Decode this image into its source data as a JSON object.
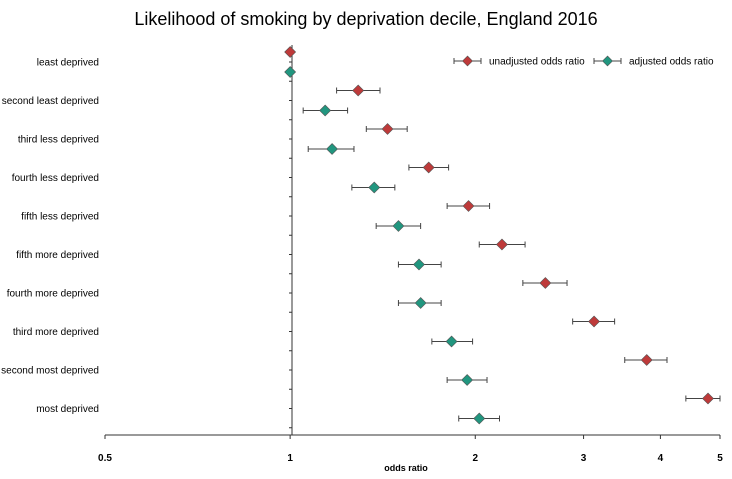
{
  "chart_data": {
    "type": "scatter",
    "title": "Likelihood of smoking by deprivation decile, England 2016",
    "xlabel": "odds ratio",
    "ylabel": "",
    "xscale": "log",
    "xlim": [
      0.5,
      5
    ],
    "xticks": [
      {
        "value": 0.5,
        "label": "0.5"
      },
      {
        "value": 1,
        "label": "1"
      },
      {
        "value": 2,
        "label": "2"
      },
      {
        "value": 3,
        "label": "3"
      },
      {
        "value": 4,
        "label": "4"
      },
      {
        "value": 5,
        "label": "5"
      }
    ],
    "categories": [
      "least deprived",
      "second least deprived",
      "third less deprived",
      "fourth less deprived",
      "fifth less deprived",
      "fifth more deprived",
      "fourth more deprived",
      "third more deprived",
      "second most deprived",
      "most deprived"
    ],
    "legend_position": "top-right",
    "grid": false,
    "series": [
      {
        "name": "unadjusted odds ratio",
        "color": "#be3a3a",
        "marker": "diamond",
        "values": [
          1.0,
          1.29,
          1.44,
          1.68,
          1.95,
          2.21,
          2.6,
          3.12,
          3.8,
          4.78
        ],
        "ci_low": [
          1.0,
          1.19,
          1.33,
          1.56,
          1.8,
          2.03,
          2.39,
          2.88,
          3.5,
          4.4
        ],
        "ci_high": [
          1.0,
          1.4,
          1.55,
          1.81,
          2.11,
          2.41,
          2.82,
          3.37,
          4.1,
          5.0
        ]
      },
      {
        "name": "adjusted odds ratio",
        "color": "#21967f",
        "marker": "diamond",
        "values": [
          1.0,
          1.14,
          1.17,
          1.37,
          1.5,
          1.62,
          1.63,
          1.83,
          1.94,
          2.03
        ],
        "ci_low": [
          1.0,
          1.05,
          1.07,
          1.26,
          1.38,
          1.5,
          1.5,
          1.7,
          1.8,
          1.88
        ],
        "ci_high": [
          1.0,
          1.24,
          1.27,
          1.48,
          1.63,
          1.76,
          1.76,
          1.98,
          2.09,
          2.19
        ]
      }
    ]
  }
}
